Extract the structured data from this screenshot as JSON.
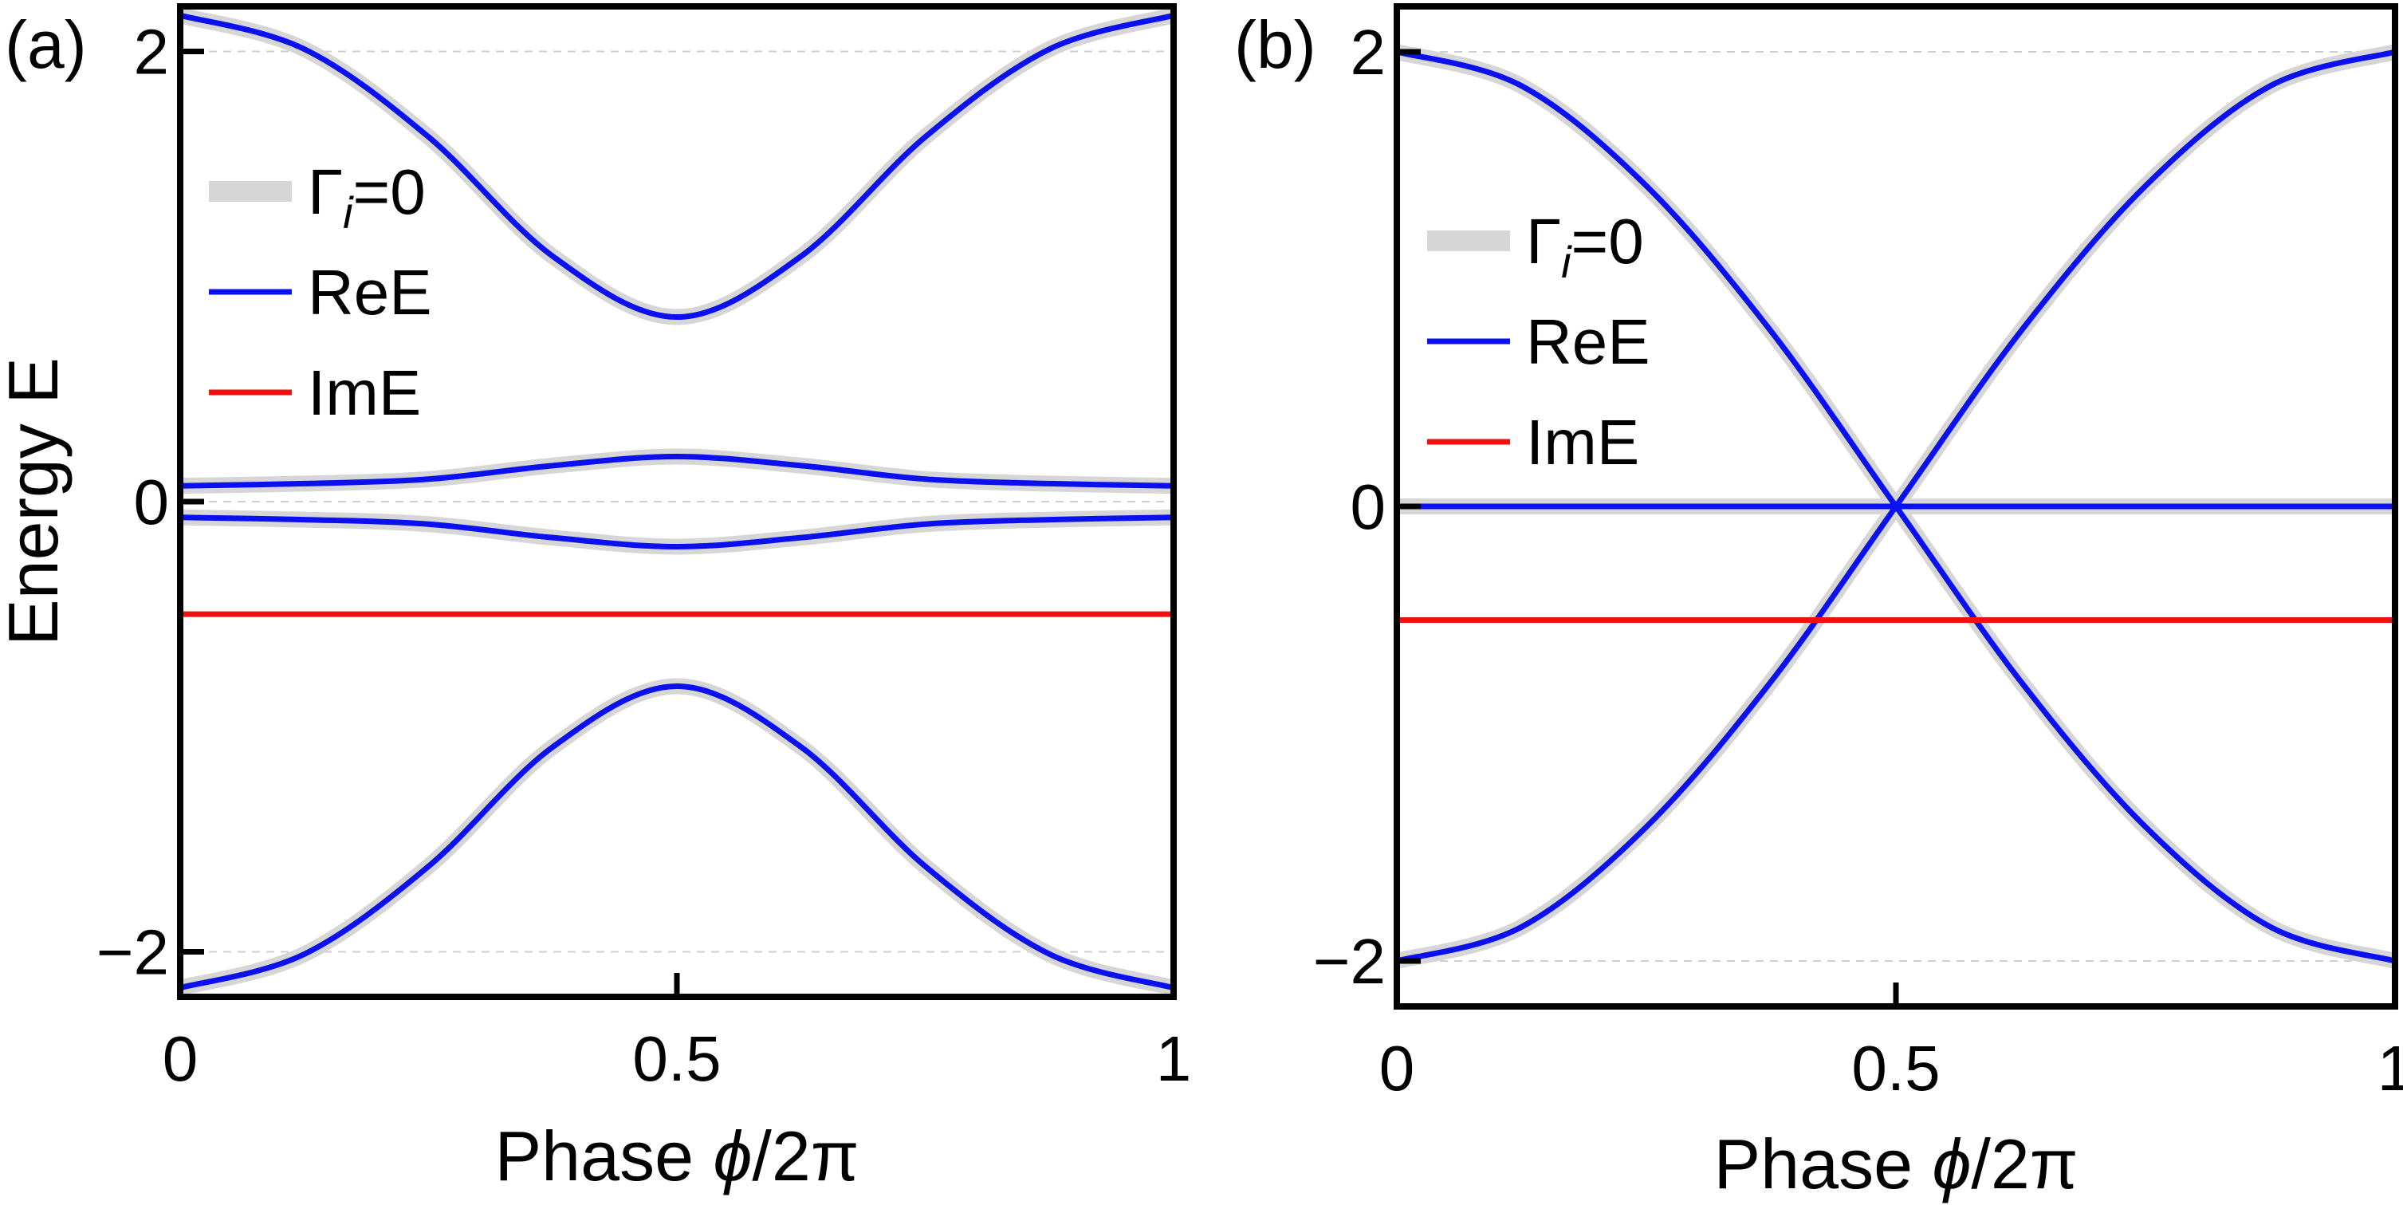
{
  "figure": {
    "panels": [
      {
        "label": "(a)"
      },
      {
        "label": "(b)"
      }
    ]
  },
  "colors": {
    "re": "#0a10f0",
    "im": "#f01010",
    "gamma": "#d6d6d6"
  },
  "chart_data": [
    {
      "type": "line",
      "panel": "(a)",
      "xlabel_text": "Phase ",
      "xlabel_phi": "ϕ",
      "xlabel_rest": "/2π",
      "ylabel": "Energy E",
      "xlim": [
        0,
        1
      ],
      "ylim": [
        -2.2,
        2.2
      ],
      "xticks": [
        0,
        0.5,
        1
      ],
      "xticklabels": [
        "0",
        "0.5",
        "1"
      ],
      "yticks": [
        -2,
        0,
        2
      ],
      "yticklabels": [
        "−2",
        "0",
        "2"
      ],
      "grid": "horizontal dashed at y ticks",
      "legend": {
        "placement": "upper-left",
        "entries": [
          {
            "gamma_sym": "Γ",
            "gamma_sub": "i",
            "gamma_eq": "=0",
            "series": "gamma"
          },
          {
            "text": "ReE",
            "series": "re"
          },
          {
            "text": "ImE",
            "series": "im"
          }
        ]
      },
      "series": [
        {
          "kind": "re",
          "x": [
            0,
            0.125,
            0.25,
            0.375,
            0.5,
            0.625,
            0.75,
            0.875,
            1
          ],
          "values": [
            2.16,
            2.01,
            1.62,
            1.09,
            0.82,
            1.09,
            1.62,
            2.01,
            2.16
          ]
        },
        {
          "kind": "re",
          "x": [
            0,
            0.125,
            0.25,
            0.375,
            0.5,
            0.625,
            0.75,
            0.875,
            1
          ],
          "values": [
            0.07,
            0.08,
            0.1,
            0.16,
            0.2,
            0.16,
            0.1,
            0.08,
            0.07
          ]
        },
        {
          "kind": "re",
          "x": [
            0,
            0.125,
            0.25,
            0.375,
            0.5,
            0.625,
            0.75,
            0.875,
            1
          ],
          "values": [
            -0.07,
            -0.08,
            -0.1,
            -0.16,
            -0.2,
            -0.16,
            -0.1,
            -0.08,
            -0.07
          ]
        },
        {
          "kind": "re",
          "x": [
            0,
            0.125,
            0.25,
            0.375,
            0.5,
            0.625,
            0.75,
            0.875,
            1
          ],
          "values": [
            -2.16,
            -2.01,
            -1.62,
            -1.09,
            -0.82,
            -1.09,
            -1.62,
            -2.01,
            -2.16
          ]
        },
        {
          "kind": "im",
          "x": [
            0,
            1
          ],
          "values": [
            -0.5,
            -0.5
          ]
        }
      ]
    },
    {
      "type": "line",
      "panel": "(b)",
      "xlabel_text": "Phase ",
      "xlabel_phi": "ϕ",
      "xlabel_rest": "/2π",
      "xlim": [
        0,
        1
      ],
      "ylim": [
        -2.2,
        2.2
      ],
      "xticks": [
        0,
        0.5,
        1
      ],
      "xticklabels": [
        "0",
        "0.5",
        "1"
      ],
      "yticks": [
        -2,
        0,
        2
      ],
      "yticklabels": [
        "−2",
        "0",
        "2"
      ],
      "grid": "horizontal dashed at y ticks",
      "legend": {
        "placement": "upper-left",
        "entries": [
          {
            "gamma_sym": "Γ",
            "gamma_sub": "i",
            "gamma_eq": "=0",
            "series": "gamma"
          },
          {
            "text": "ReE",
            "series": "re"
          },
          {
            "text": "ImE",
            "series": "im"
          }
        ]
      },
      "series": [
        {
          "kind": "re",
          "x": [
            0,
            0.125,
            0.25,
            0.375,
            0.5,
            0.625,
            0.75,
            0.875,
            1
          ],
          "values": [
            2.0,
            1.85,
            1.41,
            0.77,
            0.0,
            -0.77,
            -1.41,
            -1.85,
            -2.0
          ]
        },
        {
          "kind": "re",
          "x": [
            0,
            0.125,
            0.25,
            0.375,
            0.5,
            0.625,
            0.75,
            0.875,
            1
          ],
          "values": [
            -2.0,
            -1.85,
            -1.41,
            -0.77,
            0.0,
            0.77,
            1.41,
            1.85,
            2.0
          ]
        },
        {
          "kind": "re",
          "x": [
            0,
            1
          ],
          "values": [
            0.0,
            0.0
          ]
        },
        {
          "kind": "im",
          "x": [
            0,
            1
          ],
          "values": [
            -0.5,
            -0.5
          ]
        }
      ]
    }
  ]
}
